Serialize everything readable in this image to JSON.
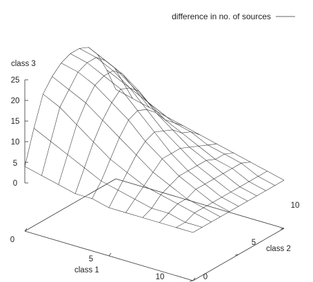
{
  "chart_data": {
    "type": "surface",
    "legend": "difference in no. of sources",
    "legend_position": "top-right",
    "xlabel": "class 1",
    "ylabel": "class 2",
    "zlabel": "class 3",
    "x_ticks": [
      "0",
      "5",
      "10"
    ],
    "y_ticks": [
      "0",
      "5",
      "10"
    ],
    "z_ticks": [
      "0",
      "5",
      "10",
      "15",
      "20",
      "25"
    ],
    "xlim": [
      0,
      10
    ],
    "ylim": [
      0,
      10
    ],
    "zlim": [
      0,
      25
    ],
    "x": [
      0,
      1,
      2,
      3,
      4,
      5,
      6,
      7,
      8,
      9,
      10
    ],
    "y": [
      0,
      1,
      2,
      3,
      4,
      5,
      6,
      7,
      8,
      9,
      10
    ],
    "z": [
      [
        4,
        12,
        19,
        22,
        24,
        25,
        25,
        24,
        21,
        16,
        10
      ],
      [
        3,
        10,
        17,
        20,
        23,
        24,
        24,
        22,
        19,
        14,
        9
      ],
      [
        2,
        8,
        14,
        18,
        21,
        22,
        22,
        20,
        16,
        12,
        8
      ],
      [
        1,
        6,
        11,
        15,
        18,
        20,
        19,
        17,
        13,
        10,
        7
      ],
      [
        1,
        4,
        8,
        12,
        15,
        16,
        15,
        13,
        10,
        8,
        6
      ],
      [
        0,
        3,
        6,
        9,
        11,
        12,
        11,
        10,
        8,
        7,
        5
      ],
      [
        0,
        2,
        4,
        6,
        8,
        8,
        8,
        7,
        6,
        5,
        4
      ],
      [
        0,
        1,
        3,
        4,
        5,
        5,
        5,
        5,
        4,
        4,
        3
      ],
      [
        0,
        1,
        2,
        2,
        3,
        3,
        3,
        3,
        3,
        3,
        2
      ],
      [
        0,
        0,
        1,
        1,
        1,
        1,
        1,
        1,
        1,
        1,
        1
      ],
      [
        0,
        0,
        0,
        0,
        0,
        0,
        0,
        0,
        0,
        0,
        0
      ]
    ]
  }
}
